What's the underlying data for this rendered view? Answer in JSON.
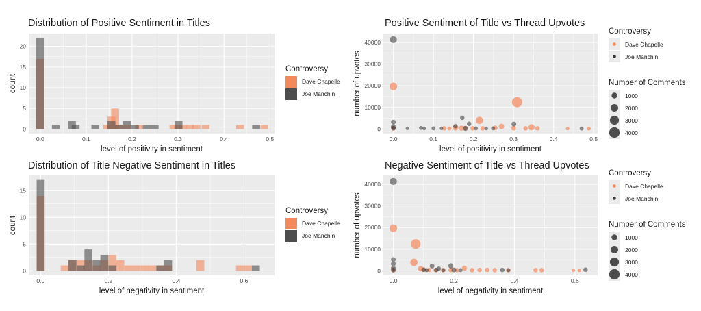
{
  "colors": {
    "dave": "#f4895c",
    "joe": "#4d4d4d",
    "panel_bg": "#ebebeb",
    "grid": "#ffffff"
  },
  "legends": {
    "fill_title": "Controversy",
    "groups": [
      "Dave Chapelle",
      "Joe Manchin"
    ],
    "size_title": "Number of Comments",
    "size_values": [
      "1000",
      "2000",
      "3000",
      "4000"
    ]
  },
  "chart_data": [
    {
      "id": "hist_pos",
      "type": "bar",
      "title": "Distribution of Positive Sentiment in Titles",
      "xlabel": "level of positivity in sentiment",
      "ylabel": "count",
      "xlim": [
        -0.025,
        0.51
      ],
      "ylim": [
        -1.1,
        23.1
      ],
      "xticks": [
        0.0,
        0.1,
        0.2,
        0.3,
        0.4,
        0.5
      ],
      "xtick_labels": [
        "0.0",
        "0.1",
        "0.2",
        "0.3",
        "0.4",
        "0.5"
      ],
      "yticks": [
        0,
        5,
        10,
        15,
        20
      ],
      "ytick_labels": [
        "0",
        "5",
        "10",
        "15",
        "20"
      ],
      "bin_width": 0.0172,
      "series": [
        {
          "name": "Dave Chapelle",
          "bins": [
            [
              0.0,
              17
            ],
            [
              0.146,
              1
            ],
            [
              0.155,
              3
            ],
            [
              0.163,
              5
            ],
            [
              0.172,
              1
            ],
            [
              0.189,
              1
            ],
            [
              0.215,
              1
            ],
            [
              0.29,
              1
            ],
            [
              0.3,
              1
            ],
            [
              0.31,
              1
            ],
            [
              0.325,
              1
            ],
            [
              0.34,
              1
            ],
            [
              0.36,
              1
            ],
            [
              0.435,
              1
            ],
            [
              0.488,
              1
            ]
          ]
        },
        {
          "name": "Joe Manchin",
          "bins": [
            [
              0.0,
              22
            ],
            [
              0.034,
              1
            ],
            [
              0.069,
              2
            ],
            [
              0.077,
              1
            ],
            [
              0.12,
              1
            ],
            [
              0.155,
              2
            ],
            [
              0.172,
              1
            ],
            [
              0.189,
              2
            ],
            [
              0.206,
              1
            ],
            [
              0.232,
              1
            ],
            [
              0.249,
              1
            ],
            [
              0.301,
              2
            ],
            [
              0.47,
              1
            ]
          ]
        }
      ]
    },
    {
      "id": "hist_neg",
      "type": "bar",
      "title": "Distribution of Title Negative Sentiment in Titles",
      "xlabel": "level of negativity in sentiment",
      "ylabel": "count",
      "xlim": [
        -0.035,
        0.69
      ],
      "ylim": [
        -0.85,
        17.85
      ],
      "xticks": [
        0.0,
        0.2,
        0.4,
        0.6
      ],
      "xtick_labels": [
        "0.0",
        "0.2",
        "0.4",
        "0.6"
      ],
      "yticks": [
        0,
        5,
        10,
        15
      ],
      "ytick_labels": [
        "0",
        "5",
        "10",
        "15"
      ],
      "bin_width": 0.0235,
      "series": [
        {
          "name": "Dave Chapelle",
          "bins": [
            [
              0.0,
              14
            ],
            [
              0.071,
              1
            ],
            [
              0.094,
              2
            ],
            [
              0.118,
              2
            ],
            [
              0.141,
              2
            ],
            [
              0.165,
              1
            ],
            [
              0.188,
              2
            ],
            [
              0.212,
              3
            ],
            [
              0.235,
              2
            ],
            [
              0.259,
              1
            ],
            [
              0.282,
              1
            ],
            [
              0.306,
              1
            ],
            [
              0.329,
              1
            ],
            [
              0.353,
              1
            ],
            [
              0.376,
              1
            ],
            [
              0.471,
              2
            ],
            [
              0.588,
              1
            ],
            [
              0.612,
              1
            ]
          ]
        },
        {
          "name": "Joe Manchin",
          "bins": [
            [
              0.0,
              17
            ],
            [
              0.094,
              2
            ],
            [
              0.118,
              1
            ],
            [
              0.141,
              4
            ],
            [
              0.165,
              2
            ],
            [
              0.188,
              3
            ],
            [
              0.212,
              1
            ],
            [
              0.353,
              1
            ],
            [
              0.376,
              2
            ],
            [
              0.635,
              1
            ]
          ]
        }
      ]
    },
    {
      "id": "scatter_pos",
      "type": "scatter",
      "title": "Positive Sentiment of Title vs Thread Upvotes",
      "xlabel": "level of positivity in sentiment",
      "ylabel": "number of upvotes",
      "xlim": [
        -0.025,
        0.51
      ],
      "ylim": [
        -2100,
        44100
      ],
      "xticks": [
        0.0,
        0.1,
        0.2,
        0.3,
        0.4,
        0.5
      ],
      "xtick_labels": [
        "0.0",
        "0.1",
        "0.2",
        "0.3",
        "0.4",
        "0.5"
      ],
      "yticks": [
        0,
        10000,
        20000,
        30000,
        40000
      ],
      "ytick_labels": [
        "0",
        "10000",
        "20000",
        "30000",
        "40000"
      ],
      "series": [
        {
          "name": "Dave Chapelle",
          "points": [
            [
              0.0,
              19700,
              1800
            ],
            [
              0.309,
              12400,
              3900
            ],
            [
              0.215,
              4000,
              1600
            ],
            [
              0.0,
              400,
              400
            ],
            [
              0.155,
              600,
              700
            ],
            [
              0.17,
              400,
              500
            ],
            [
              0.18,
              300,
              300
            ],
            [
              0.198,
              300,
              300
            ],
            [
              0.223,
              300,
              300
            ],
            [
              0.254,
              500,
              400
            ],
            [
              0.27,
              1200,
              600
            ],
            [
              0.3,
              400,
              400
            ],
            [
              0.33,
              300,
              300
            ],
            [
              0.345,
              800,
              900
            ],
            [
              0.36,
              300,
              300
            ],
            [
              0.435,
              200,
              100
            ],
            [
              0.488,
              200,
              200
            ],
            [
              0.127,
              300,
              300
            ],
            [
              0.14,
              200,
              200
            ]
          ]
        },
        {
          "name": "Joe Manchin",
          "points": [
            [
              0.0,
              41300,
              1400
            ],
            [
              0.0,
              3200,
              400
            ],
            [
              0.0,
              1000,
              500
            ],
            [
              0.0,
              300,
              300
            ],
            [
              0.035,
              300,
              100
            ],
            [
              0.069,
              500,
              200
            ],
            [
              0.077,
              200,
              100
            ],
            [
              0.1,
              300,
              200
            ],
            [
              0.12,
              300,
              100
            ],
            [
              0.155,
              1300,
              300
            ],
            [
              0.172,
              5200,
              300
            ],
            [
              0.18,
              300,
              500
            ],
            [
              0.189,
              2400,
              300
            ],
            [
              0.206,
              300,
              200
            ],
            [
              0.232,
              200,
              100
            ],
            [
              0.249,
              300,
              200
            ],
            [
              0.301,
              2300,
              400
            ],
            [
              0.47,
              200,
              200
            ]
          ]
        }
      ]
    },
    {
      "id": "scatter_neg",
      "type": "scatter",
      "title": "Negative Sentiment of Title vs Thread Upvotes",
      "xlabel": "level of negativity in sentiment",
      "ylabel": "number of upvotes",
      "xlim": [
        -0.033,
        0.675
      ],
      "ylim": [
        -2100,
        44100
      ],
      "xticks": [
        0.0,
        0.2,
        0.4,
        0.6
      ],
      "xtick_labels": [
        "0.0",
        "0.2",
        "0.4",
        "0.6"
      ],
      "yticks": [
        0,
        10000,
        20000,
        30000,
        40000
      ],
      "ytick_labels": [
        "0",
        "10000",
        "20000",
        "30000",
        "40000"
      ],
      "series": [
        {
          "name": "Dave Chapelle",
          "points": [
            [
              0.0,
              19700,
              1800
            ],
            [
              0.074,
              12400,
              3300
            ],
            [
              0.068,
              3900,
              1600
            ],
            [
              0.0,
              400,
              500
            ],
            [
              0.09,
              1000,
              600
            ],
            [
              0.1,
              500,
              400
            ],
            [
              0.118,
              400,
              300
            ],
            [
              0.14,
              300,
              300
            ],
            [
              0.165,
              300,
              300
            ],
            [
              0.19,
              400,
              400
            ],
            [
              0.21,
              300,
              300
            ],
            [
              0.235,
              1200,
              500
            ],
            [
              0.26,
              300,
              300
            ],
            [
              0.285,
              400,
              300
            ],
            [
              0.31,
              400,
              300
            ],
            [
              0.335,
              300,
              300
            ],
            [
              0.38,
              300,
              300
            ],
            [
              0.47,
              300,
              300
            ],
            [
              0.49,
              300,
              300
            ],
            [
              0.595,
              200,
              100
            ],
            [
              0.615,
              200,
              100
            ]
          ]
        },
        {
          "name": "Joe Manchin",
          "points": [
            [
              0.0,
              41300,
              1400
            ],
            [
              0.0,
              5200,
              400
            ],
            [
              0.0,
              3200,
              400
            ],
            [
              0.0,
              1200,
              400
            ],
            [
              0.0,
              300,
              300
            ],
            [
              0.1,
              500,
              300
            ],
            [
              0.11,
              300,
              200
            ],
            [
              0.128,
              2200,
              400
            ],
            [
              0.142,
              400,
              300
            ],
            [
              0.15,
              1000,
              300
            ],
            [
              0.165,
              300,
              200
            ],
            [
              0.19,
              2300,
              500
            ],
            [
              0.2,
              400,
              400
            ],
            [
              0.222,
              300,
              200
            ],
            [
              0.36,
              400,
              300
            ],
            [
              0.38,
              300,
              200
            ],
            [
              0.635,
              500,
              300
            ]
          ]
        }
      ]
    }
  ]
}
